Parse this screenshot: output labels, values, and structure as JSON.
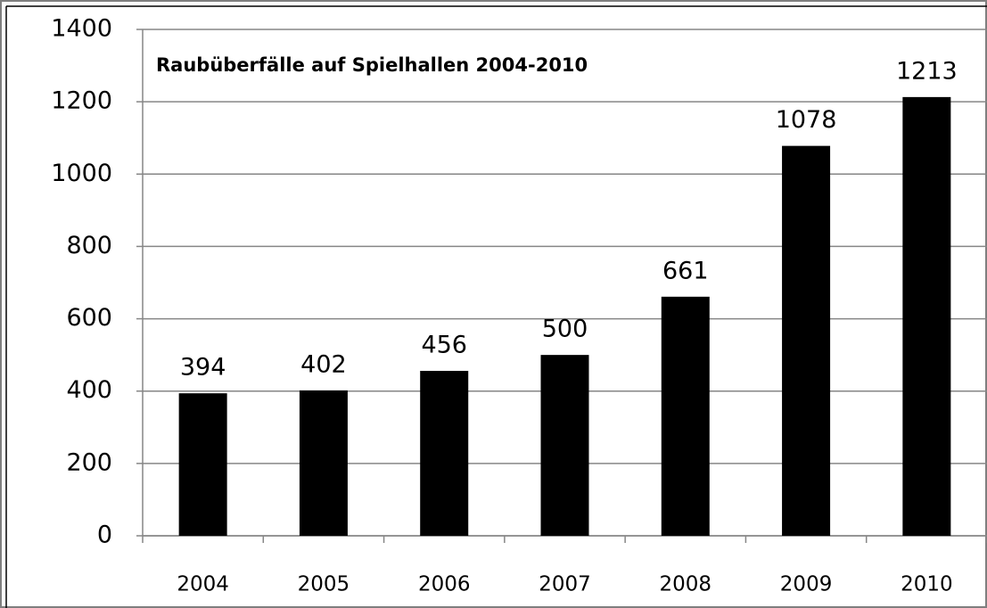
{
  "chart_data": {
    "type": "bar",
    "title": "Raubüberfälle auf Spielhallen 2004-2010",
    "categories": [
      "2004",
      "2005",
      "2006",
      "2007",
      "2008",
      "2009",
      "2010"
    ],
    "values": [
      394,
      402,
      456,
      500,
      661,
      1078,
      1213
    ],
    "color": "#000000",
    "ylim": [
      0,
      1400
    ],
    "yticks": [
      0,
      200,
      400,
      600,
      800,
      1000,
      1200,
      1400
    ],
    "grid": true
  }
}
